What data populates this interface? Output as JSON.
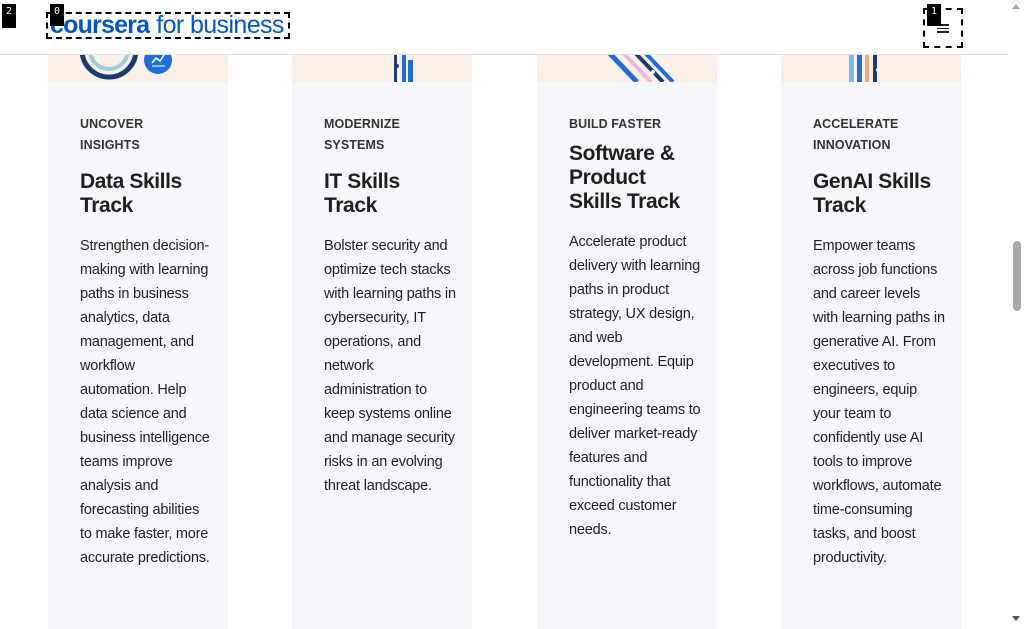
{
  "header": {
    "logo_word": "coursera",
    "logo_sub": "for business",
    "menu_icon": "hamburger-menu-icon"
  },
  "markers": [
    "0",
    "1",
    "2"
  ],
  "cards": [
    {
      "eyebrow": "UNCOVER INSIGHTS",
      "title": "Data Skills Track",
      "description": "Strengthen decision-making with learning paths in business analytics, data management, and workflow automation. Help data science and business intelligence teams improve analysis and forecasting abilities to make faster, more accurate predictions."
    },
    {
      "eyebrow": "MODERNIZE SYSTEMS",
      "title": "IT Skills Track",
      "description": "Bolster security and optimize tech stacks with learning paths in cybersecurity, IT operations, and network administration to keep systems online and manage security risks in an evolving threat landscape."
    },
    {
      "eyebrow": "BUILD FASTER",
      "title": "Software & Product Skills Track",
      "description": "Accelerate product delivery with learning paths in product strategy, UX design, and web development. Equip product and engineering teams to deliver market-ready features and functionality that exceed customer needs."
    },
    {
      "eyebrow": "ACCELERATE INNOVATION",
      "title": "GenAI Skills Track",
      "description": "Empower teams across job functions and career levels with learning paths in generative AI. From executives to engineers, equip your team to confidently use AI tools to improve workflows, automate time-consuming tasks, and boost productivity."
    }
  ],
  "colors": {
    "brand": "#0056d2",
    "card_bg": "#f5f7fa",
    "art_bg": "#fbefe5"
  }
}
